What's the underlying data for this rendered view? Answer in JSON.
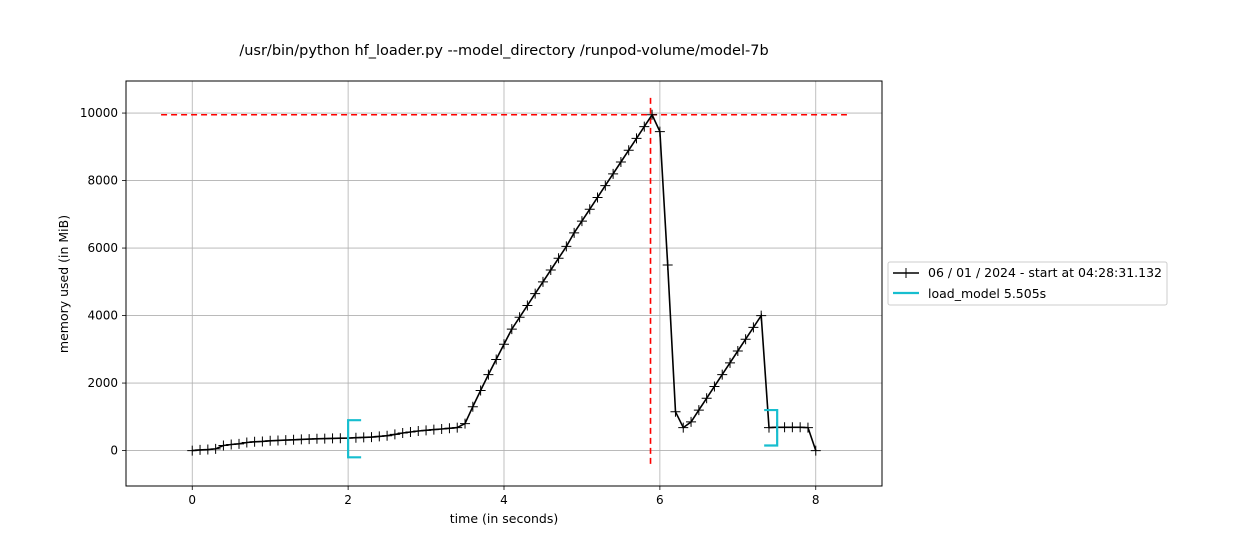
{
  "chart_data": {
    "type": "line",
    "title": "/usr/bin/python hf_loader.py --model_directory /runpod-volume/model-7b",
    "xlabel": "time (in seconds)",
    "ylabel": "memory used (in MiB)",
    "xlim": [
      -0.85,
      8.85
    ],
    "ylim": [
      -1050,
      10950
    ],
    "xticks": [
      0,
      2,
      4,
      6,
      8
    ],
    "yticks": [
      0,
      2000,
      4000,
      6000,
      8000,
      10000
    ],
    "grid": true,
    "legend_position": "right",
    "series": [
      {
        "name": "06 / 01 / 2024 - start at 04:28:31.132",
        "color": "#000000",
        "marker": "plus",
        "x": [
          0,
          0.1,
          0.2,
          0.3,
          0.4,
          0.5,
          0.6,
          0.7,
          0.8,
          0.9,
          1.0,
          1.1,
          1.2,
          1.3,
          1.4,
          1.5,
          1.6,
          1.7,
          1.8,
          1.9,
          2.0,
          2.1,
          2.2,
          2.3,
          2.4,
          2.5,
          2.6,
          2.7,
          2.8,
          2.9,
          3.0,
          3.1,
          3.2,
          3.3,
          3.4,
          3.5,
          3.6,
          3.7,
          3.8,
          3.9,
          4.0,
          4.1,
          4.2,
          4.3,
          4.4,
          4.5,
          4.6,
          4.7,
          4.8,
          4.9,
          5.0,
          5.1,
          5.2,
          5.3,
          5.4,
          5.5,
          5.6,
          5.7,
          5.8,
          5.9,
          6.0,
          6.1,
          6.2,
          6.3,
          6.4,
          6.5,
          6.6,
          6.7,
          6.8,
          6.9,
          7.0,
          7.1,
          7.2,
          7.3,
          7.4,
          7.5,
          7.6,
          7.7,
          7.8,
          7.9,
          8.0
        ],
        "y": [
          0,
          20,
          30,
          50,
          150,
          180,
          200,
          240,
          260,
          270,
          290,
          300,
          310,
          320,
          330,
          340,
          350,
          355,
          360,
          365,
          370,
          380,
          390,
          400,
          420,
          440,
          480,
          520,
          550,
          580,
          600,
          620,
          640,
          660,
          680,
          800,
          1300,
          1780,
          2250,
          2700,
          3150,
          3600,
          3950,
          4300,
          4650,
          5000,
          5350,
          5700,
          6050,
          6450,
          6800,
          7150,
          7500,
          7850,
          8200,
          8550,
          8900,
          9250,
          9600,
          9950,
          9450,
          5500,
          1150,
          680,
          850,
          1200,
          1550,
          1900,
          2250,
          2600,
          2950,
          3300,
          3650,
          4000,
          680,
          690,
          690,
          690,
          690,
          680,
          0
        ]
      },
      {
        "name": "load_model 5.505s",
        "color": "#17becf",
        "start": 2.0,
        "end": 7.505,
        "start_bracket": [
          -200,
          900
        ],
        "end_bracket": [
          150,
          1200
        ]
      }
    ],
    "peak": {
      "x": 5.88,
      "y": 9950,
      "color": "#ff0000"
    }
  }
}
